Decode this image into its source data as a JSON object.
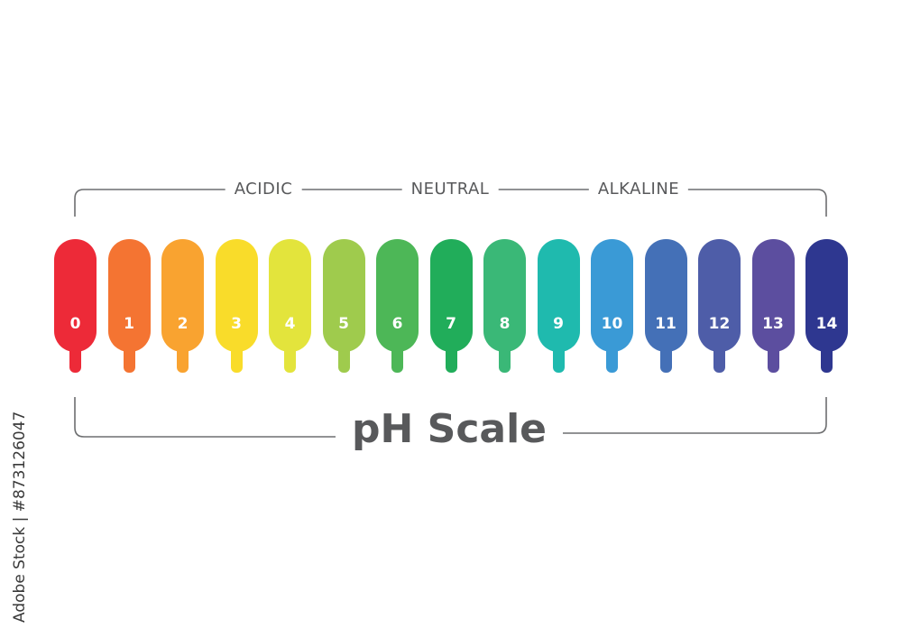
{
  "labels": {
    "acidic": "ACIDIC",
    "neutral": "NEUTRAL",
    "alkaline": "ALKALINE"
  },
  "title": "pH Scale",
  "scale": [
    {
      "value": "0",
      "color": "#ED2A38"
    },
    {
      "value": "1",
      "color": "#F47432"
    },
    {
      "value": "2",
      "color": "#F9A330"
    },
    {
      "value": "3",
      "color": "#F9DC2A"
    },
    {
      "value": "4",
      "color": "#E3E43C"
    },
    {
      "value": "5",
      "color": "#9FCB4D"
    },
    {
      "value": "6",
      "color": "#4DB757"
    },
    {
      "value": "7",
      "color": "#21AD5A"
    },
    {
      "value": "8",
      "color": "#3AB877"
    },
    {
      "value": "9",
      "color": "#1FBAAE"
    },
    {
      "value": "10",
      "color": "#3A9AD6"
    },
    {
      "value": "11",
      "color": "#4470B7"
    },
    {
      "value": "12",
      "color": "#4E5DA8"
    },
    {
      "value": "13",
      "color": "#5C4E9F"
    },
    {
      "value": "14",
      "color": "#2E3790"
    }
  ],
  "watermark": "Adobe Stock | #873126047"
}
